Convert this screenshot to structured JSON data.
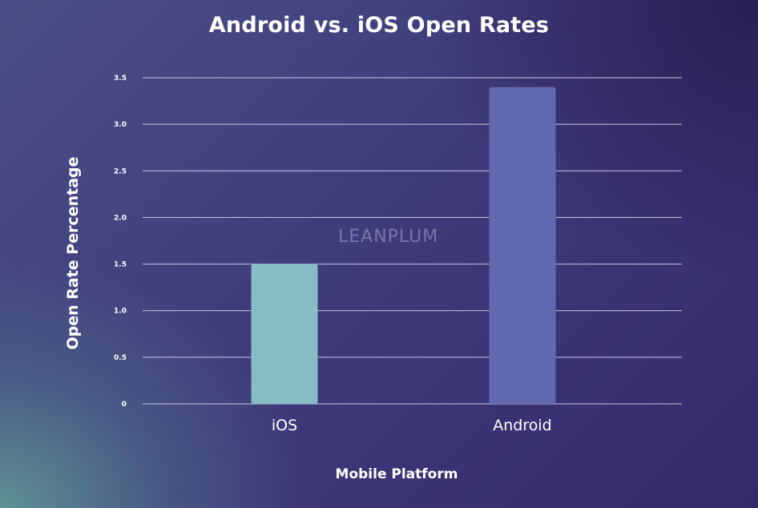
{
  "chart_data": {
    "type": "bar",
    "title": "Android vs. iOS Open Rates",
    "xlabel": "Mobile Platform",
    "ylabel": "Open Rate Percentage",
    "categories": [
      "iOS",
      "Android"
    ],
    "values": [
      1.5,
      3.4
    ],
    "bar_colors": [
      "#86bcc4",
      "#6369b0"
    ],
    "ylim": [
      0,
      3.5
    ],
    "yticks": [
      0,
      0.5,
      1.0,
      1.5,
      2.0,
      2.5,
      3.0,
      3.5
    ],
    "ytick_labels": [
      "0",
      "0.5",
      "1.0",
      "1.5",
      "2.0",
      "2.5",
      "3.0",
      "3.5"
    ],
    "grid": true,
    "legend": "none"
  },
  "watermark": "LEANPLUM",
  "colors": {
    "gridline": "#c9c6e0",
    "text": "#ffffff"
  }
}
